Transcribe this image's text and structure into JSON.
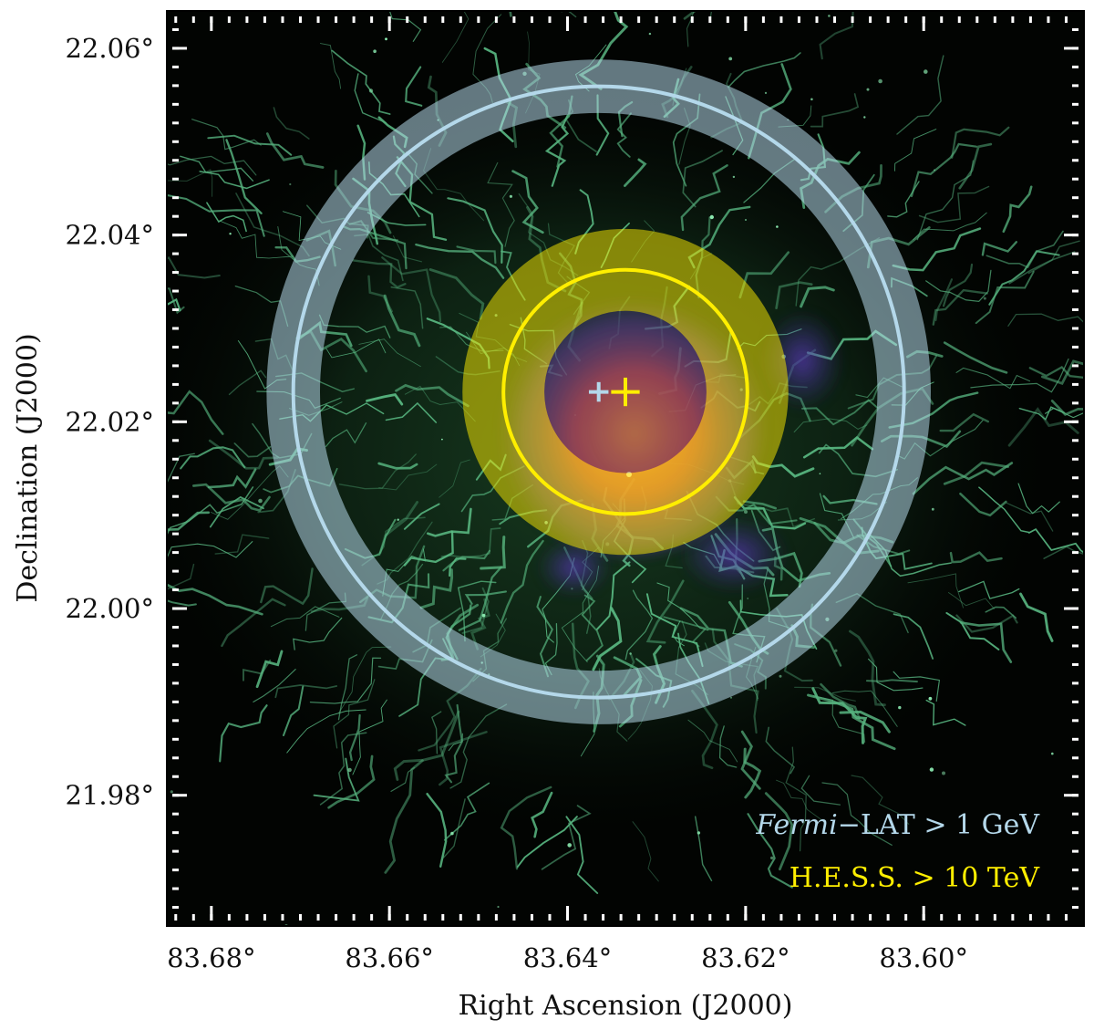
{
  "image": {
    "background_color": "#020402",
    "nebula_color": "#6fe3a2",
    "core_colors": [
      "#ff6a3a",
      "#d43a6a",
      "#5a3aa8"
    ]
  },
  "axes": {
    "xlabel": "Right Ascension (J2000)",
    "ylabel": "Declination (J2000)",
    "x_ticks": [
      {
        "label": "83.68°",
        "value": 83.68
      },
      {
        "label": "83.66°",
        "value": 83.66
      },
      {
        "label": "83.64°",
        "value": 83.64
      },
      {
        "label": "83.62°",
        "value": 83.62
      },
      {
        "label": "83.60°",
        "value": 83.6
      }
    ],
    "y_ticks": [
      {
        "label": "22.06°",
        "value": 22.06
      },
      {
        "label": "22.04°",
        "value": 22.04
      },
      {
        "label": "22.02°",
        "value": 22.02
      },
      {
        "label": "22.00°",
        "value": 22.0
      },
      {
        "label": "21.98°",
        "value": 21.98
      }
    ],
    "x_range": [
      83.685,
      83.582
    ],
    "y_range": [
      21.966,
      22.064
    ]
  },
  "overlays": {
    "fermi": {
      "label_italic": "Fermi",
      "label_rest": "−LAT > 1 GeV",
      "color": "#b4d8ea",
      "center": {
        "ra": 83.6365,
        "dec": 22.0232
      },
      "radius_deg": 0.0343,
      "uncertainty_halfwidth_deg": 0.003
    },
    "hess": {
      "label": "H.E.S.S. > 10 TeV",
      "color": "#ffee00",
      "center": {
        "ra": 83.6335,
        "dec": 22.0232
      },
      "radius_deg": 0.0137,
      "uncertainty_halfwidth_deg": 0.0046
    }
  }
}
